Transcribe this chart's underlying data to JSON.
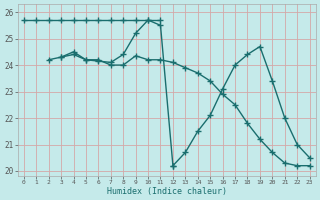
{
  "title": "",
  "xlabel": "Humidex (Indice chaleur)",
  "xlim": [
    -0.5,
    23.5
  ],
  "ylim": [
    19.8,
    26.3
  ],
  "xticks": [
    0,
    1,
    2,
    3,
    4,
    5,
    6,
    7,
    8,
    9,
    10,
    11,
    12,
    13,
    14,
    15,
    16,
    17,
    18,
    19,
    20,
    21,
    22,
    23
  ],
  "yticks": [
    20,
    21,
    22,
    23,
    24,
    25,
    26
  ],
  "bg_color": "#c5eaea",
  "grid_color": "#d4a8a8",
  "line_color": "#1a6e6e",
  "series": [
    {
      "x": [
        0,
        1,
        2,
        3,
        4,
        5,
        6,
        7,
        8,
        9,
        10,
        11
      ],
      "y": [
        25.7,
        25.7,
        25.7,
        25.7,
        25.7,
        25.7,
        25.7,
        25.7,
        25.7,
        25.7,
        25.7,
        25.7
      ]
    },
    {
      "x": [
        2,
        3,
        4,
        5,
        6,
        7,
        8,
        9,
        10,
        11,
        12,
        13,
        14,
        15,
        16,
        17,
        18,
        19,
        20,
        21,
        22,
        23
      ],
      "y": [
        24.2,
        24.3,
        24.4,
        24.2,
        24.2,
        24.0,
        24.0,
        24.35,
        24.2,
        24.2,
        24.1,
        23.9,
        23.7,
        23.4,
        22.9,
        22.5,
        21.8,
        21.2,
        20.7,
        20.3,
        20.2,
        20.2
      ]
    },
    {
      "x": [
        3,
        4,
        5,
        6,
        7,
        8,
        9,
        10,
        11,
        12
      ],
      "y": [
        24.3,
        24.5,
        24.2,
        24.15,
        24.1,
        24.4,
        25.2,
        25.7,
        25.5,
        20.2
      ]
    },
    {
      "x": [
        12,
        13,
        14,
        15,
        16,
        17,
        18,
        19,
        20,
        21,
        22,
        23
      ],
      "y": [
        20.2,
        20.7,
        21.5,
        22.1,
        23.1,
        24.0,
        24.4,
        24.7,
        23.4,
        22.0,
        21.0,
        20.5
      ]
    }
  ],
  "marker": "+",
  "markersize": 4,
  "markeredgewidth": 1.0,
  "linewidth": 1.0
}
